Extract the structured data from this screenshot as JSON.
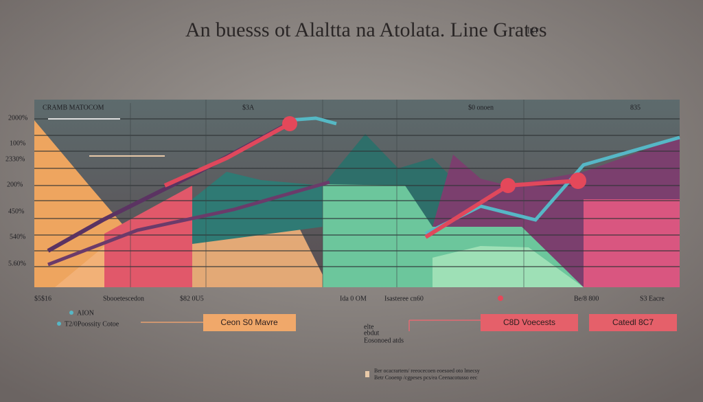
{
  "header": {
    "title": "An buesss ot Alaltta na Atolata. Line Grates",
    "badge": "IKT"
  },
  "panel": {
    "column_headers": [
      "CRAMB MATOCOM",
      "$3A",
      "$0 onoen",
      "835"
    ],
    "row_labels": [
      "2000%",
      "100%",
      "2330%",
      "200%",
      "450%",
      "540%",
      "5.60%"
    ],
    "bottom_labels": [
      "$5$16",
      "Sbooetescedon",
      "$82 0U5",
      "Ida 0 OM",
      "Isasteree cn60",
      "Be/8 800",
      "S3 Eacre"
    ]
  },
  "legend": {
    "items": [
      "AION",
      "T2/0Poossity Cotoe"
    ]
  },
  "buttons": [
    "Ceon S0 Mavre",
    "C8D Voecests",
    "Catedl 8C7"
  ],
  "notes": [
    "elte",
    "ebdut",
    "Eosonoed atds"
  ],
  "footer": [
    "Ber ocacrartem/ reeocecoen eoesoed oto lmecsy",
    "Betr Cooenp /cgpeses pcs/ea Ceenacotusso eec"
  ]
}
